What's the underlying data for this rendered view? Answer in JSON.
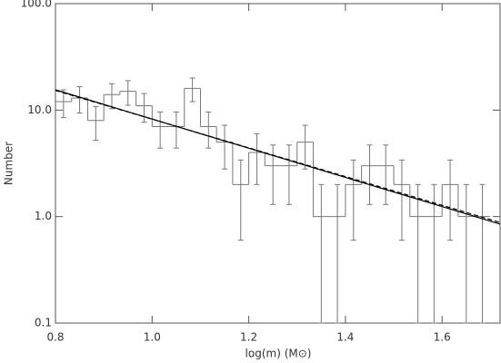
{
  "chart_data": {
    "type": "histogram",
    "xlabel": "log(m) (M⊙)",
    "ylabel": "Number",
    "bins": [
      0.8,
      0.8333,
      0.8667,
      0.9,
      0.9333,
      0.9667,
      1.0,
      1.0333,
      1.0667,
      1.1,
      1.1333,
      1.1667,
      1.2,
      1.2333,
      1.2667,
      1.3,
      1.3333,
      1.3667,
      1.4,
      1.4333,
      1.4667,
      1.5,
      1.5333,
      1.5667,
      1.6,
      1.6333,
      1.6667,
      1.7
    ],
    "values": [
      12,
      13,
      8,
      14,
      15,
      11,
      7,
      7,
      16,
      7,
      5,
      2,
      4,
      3,
      3,
      5,
      1,
      1,
      2,
      3,
      3,
      2,
      1,
      1,
      2,
      1,
      1
    ],
    "errors": [
      3.5,
      3.6,
      2.8,
      3.7,
      3.9,
      3.3,
      2.6,
      2.6,
      4,
      2.6,
      2.2,
      1.4,
      2,
      1.7,
      1.7,
      2.2,
      1,
      1,
      1.4,
      1.7,
      1.7,
      1.4,
      1,
      1,
      1.4,
      1,
      1
    ],
    "color": "#777777",
    "lines": [
      {
        "x": [
          0.8,
          1.72
        ],
        "values": [
          15.5,
          0.85
        ],
        "color": "#000000",
        "dash": false
      },
      {
        "x": [
          0.8,
          1.72
        ],
        "values": [
          15.3,
          0.88
        ],
        "color": "#000000",
        "dash": true
      }
    ],
    "xlim": [
      0.8,
      1.72
    ],
    "xticks": [
      {
        "value": 0.8,
        "label": "0.8"
      },
      {
        "value": 1.0,
        "label": "1.0"
      },
      {
        "value": 1.2,
        "label": "1.2"
      },
      {
        "value": 1.4,
        "label": "1.4"
      },
      {
        "value": 1.6,
        "label": "1.6"
      }
    ],
    "ylim": [
      0.1,
      100
    ],
    "log_y": true,
    "yticks": [
      {
        "value": 0.1,
        "label": "0.1"
      },
      {
        "value": 1,
        "label": "1.0"
      },
      {
        "value": 10,
        "label": "10.0"
      },
      {
        "value": 100,
        "label": "100.0"
      }
    ]
  }
}
